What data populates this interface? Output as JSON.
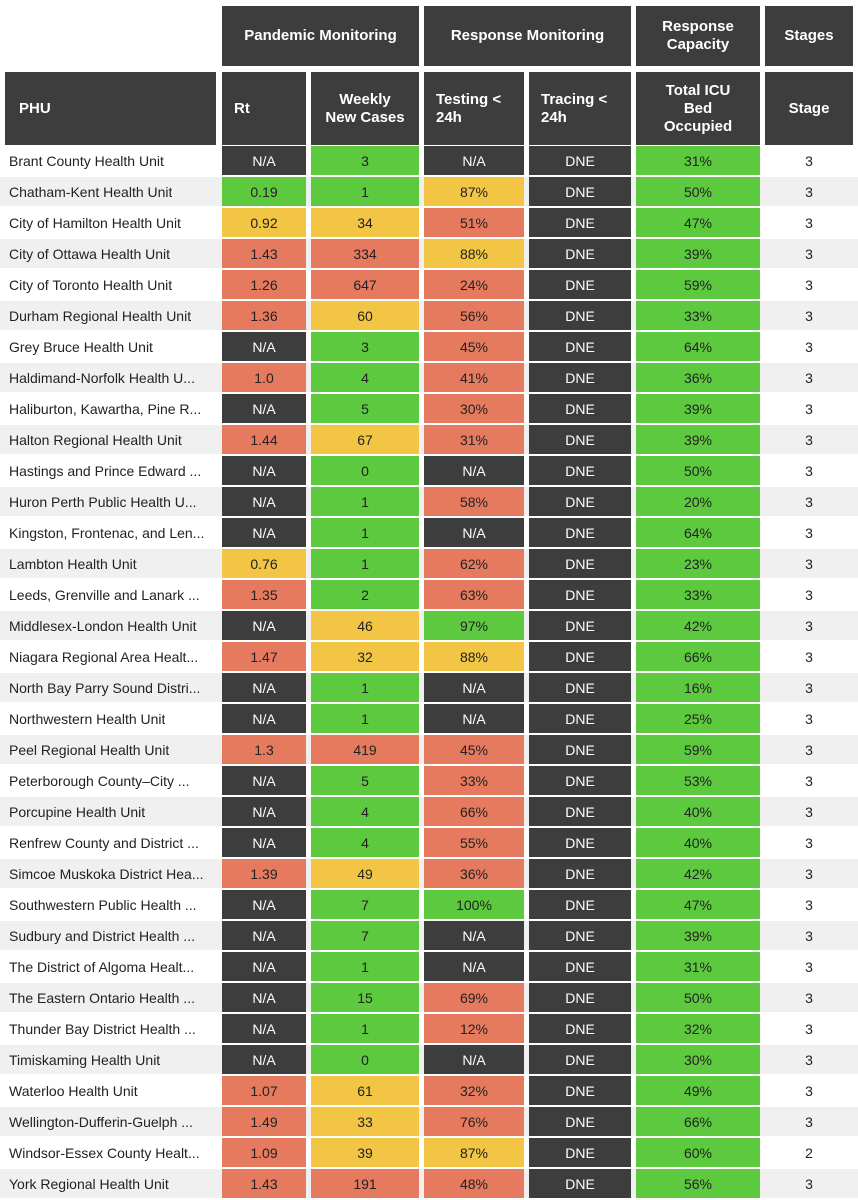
{
  "colors": {
    "dark": "#3d3d3d",
    "green": "#5dc93f",
    "yellow": "#f2c544",
    "red": "#e57a5f"
  },
  "header": {
    "groups": {
      "pandemic": "Pandemic Monitoring",
      "response_monitoring": "Response Monitoring",
      "response_capacity": "Response Capacity",
      "stages": "Stages"
    },
    "columns": {
      "phu": "PHU",
      "rt": "Rt",
      "weekly": "Weekly New Cases",
      "testing": "Testing < 24h",
      "tracing": "Tracing < 24h",
      "icu": "Total ICU Bed Occupied",
      "stage": "Stage"
    }
  },
  "rows": [
    {
      "name": "Brant County Health Unit",
      "rt": "N/A",
      "rt_c": "dark",
      "cases": "3",
      "cases_c": "green",
      "testing": "N/A",
      "testing_c": "dark",
      "tracing": "DNE",
      "icu": "31%",
      "stage": "3"
    },
    {
      "name": "Chatham-Kent Health Unit",
      "rt": "0.19",
      "rt_c": "green",
      "cases": "1",
      "cases_c": "green",
      "testing": "87%",
      "testing_c": "yellow",
      "tracing": "DNE",
      "icu": "50%",
      "stage": "3"
    },
    {
      "name": "City of Hamilton Health Unit",
      "rt": "0.92",
      "rt_c": "yellow",
      "cases": "34",
      "cases_c": "yellow",
      "testing": "51%",
      "testing_c": "red",
      "tracing": "DNE",
      "icu": "47%",
      "stage": "3"
    },
    {
      "name": "City of Ottawa Health Unit",
      "rt": "1.43",
      "rt_c": "red",
      "cases": "334",
      "cases_c": "red",
      "testing": "88%",
      "testing_c": "yellow",
      "tracing": "DNE",
      "icu": "39%",
      "stage": "3"
    },
    {
      "name": "City of Toronto Health Unit",
      "rt": "1.26",
      "rt_c": "red",
      "cases": "647",
      "cases_c": "red",
      "testing": "24%",
      "testing_c": "red",
      "tracing": "DNE",
      "icu": "59%",
      "stage": "3"
    },
    {
      "name": "Durham Regional Health Unit",
      "rt": "1.36",
      "rt_c": "red",
      "cases": "60",
      "cases_c": "yellow",
      "testing": "56%",
      "testing_c": "red",
      "tracing": "DNE",
      "icu": "33%",
      "stage": "3"
    },
    {
      "name": "Grey Bruce Health Unit",
      "rt": "N/A",
      "rt_c": "dark",
      "cases": "3",
      "cases_c": "green",
      "testing": "45%",
      "testing_c": "red",
      "tracing": "DNE",
      "icu": "64%",
      "stage": "3"
    },
    {
      "name": "Haldimand-Norfolk Health U...",
      "rt": "1.0",
      "rt_c": "red",
      "cases": "4",
      "cases_c": "green",
      "testing": "41%",
      "testing_c": "red",
      "tracing": "DNE",
      "icu": "36%",
      "stage": "3"
    },
    {
      "name": "Haliburton, Kawartha, Pine R...",
      "rt": "N/A",
      "rt_c": "dark",
      "cases": "5",
      "cases_c": "green",
      "testing": "30%",
      "testing_c": "red",
      "tracing": "DNE",
      "icu": "39%",
      "stage": "3"
    },
    {
      "name": "Halton Regional Health Unit",
      "rt": "1.44",
      "rt_c": "red",
      "cases": "67",
      "cases_c": "yellow",
      "testing": "31%",
      "testing_c": "red",
      "tracing": "DNE",
      "icu": "39%",
      "stage": "3"
    },
    {
      "name": "Hastings and Prince Edward ...",
      "rt": "N/A",
      "rt_c": "dark",
      "cases": "0",
      "cases_c": "green",
      "testing": "N/A",
      "testing_c": "dark",
      "tracing": "DNE",
      "icu": "50%",
      "stage": "3"
    },
    {
      "name": "Huron Perth Public Health U...",
      "rt": "N/A",
      "rt_c": "dark",
      "cases": "1",
      "cases_c": "green",
      "testing": "58%",
      "testing_c": "red",
      "tracing": "DNE",
      "icu": "20%",
      "stage": "3"
    },
    {
      "name": "Kingston, Frontenac, and Len...",
      "rt": "N/A",
      "rt_c": "dark",
      "cases": "1",
      "cases_c": "green",
      "testing": "N/A",
      "testing_c": "dark",
      "tracing": "DNE",
      "icu": "64%",
      "stage": "3"
    },
    {
      "name": "Lambton Health Unit",
      "rt": "0.76",
      "rt_c": "yellow",
      "cases": "1",
      "cases_c": "green",
      "testing": "62%",
      "testing_c": "red",
      "tracing": "DNE",
      "icu": "23%",
      "stage": "3"
    },
    {
      "name": "Leeds, Grenville and Lanark ...",
      "rt": "1.35",
      "rt_c": "red",
      "cases": "2",
      "cases_c": "green",
      "testing": "63%",
      "testing_c": "red",
      "tracing": "DNE",
      "icu": "33%",
      "stage": "3"
    },
    {
      "name": "Middlesex-London Health Unit",
      "rt": "N/A",
      "rt_c": "dark",
      "cases": "46",
      "cases_c": "yellow",
      "testing": "97%",
      "testing_c": "green",
      "tracing": "DNE",
      "icu": "42%",
      "stage": "3"
    },
    {
      "name": "Niagara Regional Area Healt...",
      "rt": "1.47",
      "rt_c": "red",
      "cases": "32",
      "cases_c": "yellow",
      "testing": "88%",
      "testing_c": "yellow",
      "tracing": "DNE",
      "icu": "66%",
      "stage": "3"
    },
    {
      "name": "North Bay Parry Sound Distri...",
      "rt": "N/A",
      "rt_c": "dark",
      "cases": "1",
      "cases_c": "green",
      "testing": "N/A",
      "testing_c": "dark",
      "tracing": "DNE",
      "icu": "16%",
      "stage": "3"
    },
    {
      "name": "Northwestern Health Unit",
      "rt": "N/A",
      "rt_c": "dark",
      "cases": "1",
      "cases_c": "green",
      "testing": "N/A",
      "testing_c": "dark",
      "tracing": "DNE",
      "icu": "25%",
      "stage": "3"
    },
    {
      "name": "Peel Regional Health Unit",
      "rt": "1.3",
      "rt_c": "red",
      "cases": "419",
      "cases_c": "red",
      "testing": "45%",
      "testing_c": "red",
      "tracing": "DNE",
      "icu": "59%",
      "stage": "3"
    },
    {
      "name": "Peterborough County–City ...",
      "rt": "N/A",
      "rt_c": "dark",
      "cases": "5",
      "cases_c": "green",
      "testing": "33%",
      "testing_c": "red",
      "tracing": "DNE",
      "icu": "53%",
      "stage": "3"
    },
    {
      "name": "Porcupine Health Unit",
      "rt": "N/A",
      "rt_c": "dark",
      "cases": "4",
      "cases_c": "green",
      "testing": "66%",
      "testing_c": "red",
      "tracing": "DNE",
      "icu": "40%",
      "stage": "3"
    },
    {
      "name": "Renfrew County and District ...",
      "rt": "N/A",
      "rt_c": "dark",
      "cases": "4",
      "cases_c": "green",
      "testing": "55%",
      "testing_c": "red",
      "tracing": "DNE",
      "icu": "40%",
      "stage": "3"
    },
    {
      "name": "Simcoe Muskoka District Hea...",
      "rt": "1.39",
      "rt_c": "red",
      "cases": "49",
      "cases_c": "yellow",
      "testing": "36%",
      "testing_c": "red",
      "tracing": "DNE",
      "icu": "42%",
      "stage": "3"
    },
    {
      "name": "Southwestern Public Health ...",
      "rt": "N/A",
      "rt_c": "dark",
      "cases": "7",
      "cases_c": "green",
      "testing": "100%",
      "testing_c": "green",
      "tracing": "DNE",
      "icu": "47%",
      "stage": "3"
    },
    {
      "name": "Sudbury and District Health ...",
      "rt": "N/A",
      "rt_c": "dark",
      "cases": "7",
      "cases_c": "green",
      "testing": "N/A",
      "testing_c": "dark",
      "tracing": "DNE",
      "icu": "39%",
      "stage": "3"
    },
    {
      "name": "The District of Algoma Healt...",
      "rt": "N/A",
      "rt_c": "dark",
      "cases": "1",
      "cases_c": "green",
      "testing": "N/A",
      "testing_c": "dark",
      "tracing": "DNE",
      "icu": "31%",
      "stage": "3"
    },
    {
      "name": "The Eastern Ontario Health ...",
      "rt": "N/A",
      "rt_c": "dark",
      "cases": "15",
      "cases_c": "green",
      "testing": "69%",
      "testing_c": "red",
      "tracing": "DNE",
      "icu": "50%",
      "stage": "3"
    },
    {
      "name": "Thunder Bay District Health ...",
      "rt": "N/A",
      "rt_c": "dark",
      "cases": "1",
      "cases_c": "green",
      "testing": "12%",
      "testing_c": "red",
      "tracing": "DNE",
      "icu": "32%",
      "stage": "3"
    },
    {
      "name": "Timiskaming Health Unit",
      "rt": "N/A",
      "rt_c": "dark",
      "cases": "0",
      "cases_c": "green",
      "testing": "N/A",
      "testing_c": "dark",
      "tracing": "DNE",
      "icu": "30%",
      "stage": "3"
    },
    {
      "name": "Waterloo Health Unit",
      "rt": "1.07",
      "rt_c": "red",
      "cases": "61",
      "cases_c": "yellow",
      "testing": "32%",
      "testing_c": "red",
      "tracing": "DNE",
      "icu": "49%",
      "stage": "3"
    },
    {
      "name": "Wellington-Dufferin-Guelph ...",
      "rt": "1.49",
      "rt_c": "red",
      "cases": "33",
      "cases_c": "yellow",
      "testing": "76%",
      "testing_c": "red",
      "tracing": "DNE",
      "icu": "66%",
      "stage": "3"
    },
    {
      "name": "Windsor-Essex County Healt...",
      "rt": "1.09",
      "rt_c": "red",
      "cases": "39",
      "cases_c": "yellow",
      "testing": "87%",
      "testing_c": "yellow",
      "tracing": "DNE",
      "icu": "60%",
      "stage": "2"
    },
    {
      "name": "York Regional Health Unit",
      "rt": "1.43",
      "rt_c": "red",
      "cases": "191",
      "cases_c": "red",
      "testing": "48%",
      "testing_c": "red",
      "tracing": "DNE",
      "icu": "56%",
      "stage": "3"
    }
  ]
}
